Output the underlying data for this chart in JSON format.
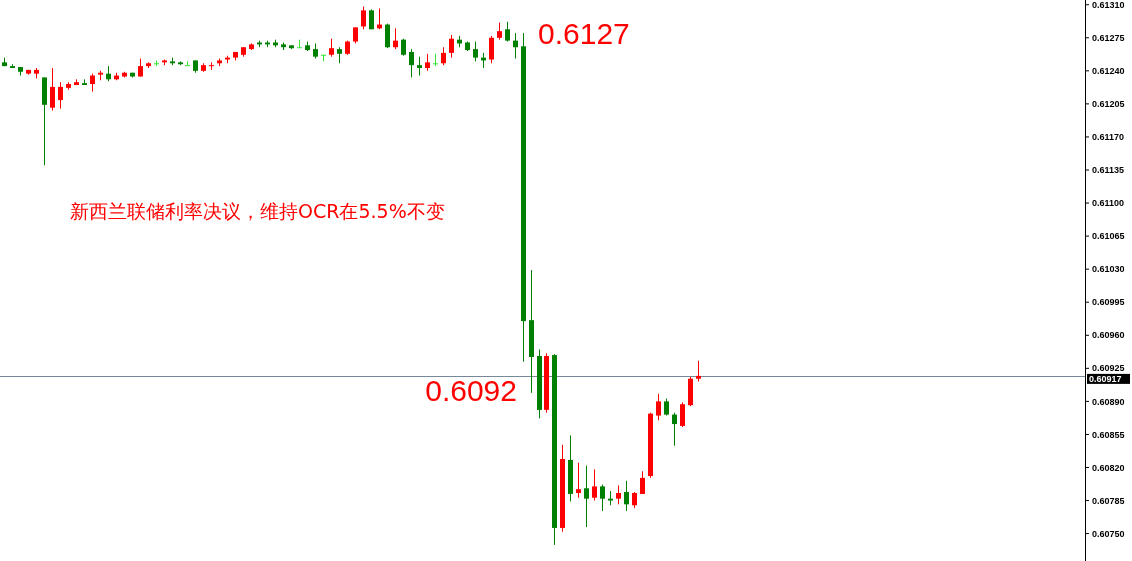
{
  "chart_data": {
    "type": "candlestick",
    "categories": [
      null,
      null,
      null,
      null,
      null,
      null,
      null,
      null,
      null,
      null,
      null,
      null,
      null,
      null,
      null,
      null,
      null,
      null,
      null,
      null,
      null,
      null,
      null,
      null,
      null,
      null,
      null,
      null,
      null,
      null,
      null,
      null,
      null,
      null,
      null,
      null,
      null,
      null,
      null,
      null,
      null,
      null,
      null,
      null,
      null,
      null,
      null,
      null,
      null,
      null,
      null,
      null,
      null,
      null,
      null,
      null,
      null,
      null,
      null,
      null,
      null,
      null,
      null,
      null,
      null,
      null,
      null,
      null,
      null,
      null,
      null,
      null,
      null,
      null,
      null,
      null,
      null,
      null,
      null,
      null,
      null,
      null,
      null,
      null,
      null,
      null,
      null,
      null,
      null,
      null,
      null,
      null,
      null,
      null,
      null,
      null,
      null,
      null,
      null,
      null,
      null,
      null,
      null,
      null,
      null,
      null,
      null,
      null,
      null,
      null,
      null,
      null,
      null,
      null,
      null,
      null,
      null,
      null,
      null,
      null,
      null,
      null,
      null,
      null,
      null,
      null,
      null,
      null,
      null,
      null,
      null,
      null,
      null,
      null,
      null,
      null
    ],
    "ohlc": [
      [
        0.61249,
        0.61254,
        0.61245,
        0.61245
      ],
      [
        0.61245,
        0.61247,
        0.61243,
        0.61243
      ],
      [
        0.61244,
        0.61244,
        0.61235,
        0.61239
      ],
      [
        0.61237,
        0.61241,
        0.61236,
        0.61241
      ],
      [
        0.61237,
        0.61243,
        0.61232,
        0.61241
      ],
      [
        0.61233,
        0.61233,
        0.6114,
        0.61204
      ],
      [
        0.61201,
        0.61243,
        0.61198,
        0.61223
      ],
      [
        0.61209,
        0.61228,
        0.612,
        0.61223
      ],
      [
        0.61222,
        0.61228,
        0.6122,
        0.61226
      ],
      [
        0.61225,
        0.61231,
        0.61225,
        0.61228
      ],
      [
        0.61227,
        0.61231,
        0.61225,
        0.61225
      ],
      [
        0.61226,
        0.61237,
        0.61218,
        0.61235
      ],
      [
        0.61236,
        0.6124,
        0.6123,
        0.61238
      ],
      [
        0.61237,
        0.61245,
        0.61229,
        0.61231
      ],
      [
        0.61231,
        0.61238,
        0.6123,
        0.61235
      ],
      [
        0.61234,
        0.61239,
        0.61233,
        0.61238
      ],
      [
        0.61238,
        0.61238,
        0.61233,
        0.61234
      ],
      [
        0.61234,
        0.61253,
        0.61234,
        0.61245
      ],
      [
        0.61245,
        0.61249,
        0.61243,
        0.61248
      ],
      [
        0.61248,
        0.61251,
        0.61245,
        0.61248
      ],
      [
        0.61249,
        0.61252,
        0.61246,
        0.61251
      ],
      [
        0.6125,
        0.61254,
        0.61246,
        0.61248
      ],
      [
        0.61249,
        0.6125,
        0.61246,
        0.61247
      ],
      [
        0.61246,
        0.6125,
        0.61246,
        0.61246
      ],
      [
        0.61251,
        0.61251,
        0.61238,
        0.6124
      ],
      [
        0.6124,
        0.61248,
        0.61239,
        0.61246
      ],
      [
        0.61245,
        0.61249,
        0.61241,
        0.61246
      ],
      [
        0.61248,
        0.61253,
        0.61245,
        0.61251
      ],
      [
        0.61252,
        0.61256,
        0.61248,
        0.61254
      ],
      [
        0.61254,
        0.6126,
        0.61251,
        0.6126
      ],
      [
        0.61257,
        0.61265,
        0.61255,
        0.61265
      ],
      [
        0.61263,
        0.61269,
        0.61262,
        0.61268
      ],
      [
        0.6127,
        0.61272,
        0.61265,
        0.61268
      ],
      [
        0.6127,
        0.61272,
        0.61265,
        0.61268
      ],
      [
        0.6127,
        0.61273,
        0.61265,
        0.61267
      ],
      [
        0.61268,
        0.6127,
        0.61262,
        0.61265
      ],
      [
        0.61267,
        0.61267,
        0.61263,
        0.61264
      ],
      [
        0.61265,
        0.61273,
        0.61265,
        0.61265
      ],
      [
        0.61267,
        0.61271,
        0.61261,
        0.61262
      ],
      [
        0.61263,
        0.61269,
        0.61253,
        0.61255
      ],
      [
        0.61257,
        0.61257,
        0.6125,
        0.61257
      ],
      [
        0.61257,
        0.61274,
        0.61255,
        0.61264
      ],
      [
        0.61263,
        0.61265,
        0.61248,
        0.61258
      ],
      [
        0.61258,
        0.61272,
        0.61257,
        0.61271
      ],
      [
        0.61271,
        0.61286,
        0.61269,
        0.61286
      ],
      [
        0.61287,
        0.61308,
        0.61284,
        0.61304
      ],
      [
        0.61304,
        0.61305,
        0.61284,
        0.61284
      ],
      [
        0.61285,
        0.61306,
        0.61284,
        0.61289
      ],
      [
        0.61289,
        0.6129,
        0.61264,
        0.61265
      ],
      [
        0.61265,
        0.61285,
        0.61263,
        0.61272
      ],
      [
        0.61273,
        0.61274,
        0.61256,
        0.61257
      ],
      [
        0.6126,
        0.61263,
        0.61233,
        0.61246
      ],
      [
        0.61246,
        0.61255,
        0.61235,
        0.61243
      ],
      [
        0.61243,
        0.61258,
        0.6124,
        0.61249
      ],
      [
        0.61248,
        0.61258,
        0.61245,
        0.61248
      ],
      [
        0.61248,
        0.61265,
        0.61246,
        0.61259
      ],
      [
        0.61259,
        0.61278,
        0.61254,
        0.61274
      ],
      [
        0.61273,
        0.61277,
        0.61265,
        0.61269
      ],
      [
        0.6127,
        0.61271,
        0.61261,
        0.61262
      ],
      [
        0.61263,
        0.61271,
        0.6125,
        0.61254
      ],
      [
        0.61254,
        0.61259,
        0.61243,
        0.61251
      ],
      [
        0.61252,
        0.61277,
        0.61248,
        0.61275
      ],
      [
        0.61275,
        0.61291,
        0.61273,
        0.61282
      ],
      [
        0.61284,
        0.61292,
        0.61271,
        0.61272
      ],
      [
        0.61272,
        0.6128,
        0.61253,
        0.61265
      ],
      [
        0.61266,
        0.6128,
        0.60932,
        0.60975
      ],
      [
        0.60976,
        0.61029,
        0.60899,
        0.60937
      ],
      [
        0.60938,
        0.60945,
        0.60872,
        0.60881
      ],
      [
        0.60881,
        0.60941,
        0.60878,
        0.60938
      ],
      [
        0.60939,
        0.6094,
        0.60738,
        0.60756
      ],
      [
        0.60756,
        0.60844,
        0.60752,
        0.60829
      ],
      [
        0.60828,
        0.60854,
        0.60784,
        0.60792
      ],
      [
        0.60793,
        0.60825,
        0.60788,
        0.60797
      ],
      [
        0.60798,
        0.60822,
        0.60757,
        0.60787
      ],
      [
        0.60788,
        0.60818,
        0.60785,
        0.608
      ],
      [
        0.608,
        0.60802,
        0.60774,
        0.60787
      ],
      [
        0.60787,
        0.60795,
        0.6078,
        0.60785
      ],
      [
        0.60787,
        0.60801,
        0.60781,
        0.60793
      ],
      [
        0.60794,
        0.60806,
        0.60774,
        0.60781
      ],
      [
        0.6078,
        0.60794,
        0.60777,
        0.60793
      ],
      [
        0.60792,
        0.60816,
        0.60792,
        0.60809
      ],
      [
        0.60811,
        0.60878,
        0.60809,
        0.60877
      ],
      [
        0.60875,
        0.60898,
        0.6087,
        0.6089
      ],
      [
        0.6089,
        0.60893,
        0.60875,
        0.60876
      ],
      [
        0.60876,
        0.60878,
        0.60843,
        0.60866
      ],
      [
        0.60864,
        0.60889,
        0.60863,
        0.60887
      ],
      [
        0.60886,
        0.60916,
        0.60885,
        0.60914
      ],
      [
        0.60914,
        0.60933,
        0.60911,
        0.60917
      ],
      null,
      null,
      null,
      null,
      null,
      null,
      null,
      null,
      null,
      null,
      null,
      null,
      null,
      null,
      null,
      null,
      null,
      null,
      null,
      null,
      null,
      null,
      null,
      null,
      null,
      null,
      null,
      null,
      null,
      null,
      null,
      null,
      null,
      null,
      null,
      null,
      null,
      null,
      null,
      null,
      null,
      null,
      null,
      null,
      null,
      null,
      null,
      null
    ],
    "colors": [
      "#008000",
      "#008000",
      "#008000",
      "#ff0000",
      "#ff0000",
      "#008000",
      "#ff0000",
      "#ff0000",
      "#ff0000",
      "#ff0000",
      "#008000",
      "#ff0000",
      "#ff0000",
      "#008000",
      "#ff0000",
      "#ff0000",
      "#008000",
      "#ff0000",
      "#ff0000",
      "#32e632",
      "#ff0000",
      "#008000",
      "#008000",
      "#32e632",
      "#008000",
      "#ff0000",
      "#ff0000",
      "#ff0000",
      "#ff0000",
      "#ff0000",
      "#ff0000",
      "#ff0000",
      "#008000",
      "#008000",
      "#008000",
      "#008000",
      "#008000",
      "#32e632",
      "#008000",
      "#008000",
      "#32e632",
      "#ff0000",
      "#008000",
      "#ff0000",
      "#ff0000",
      "#ff0000",
      "#008000",
      "#ff0000",
      "#008000",
      "#ff0000",
      "#008000",
      "#008000",
      "#008000",
      "#ff0000",
      "#32e632",
      "#ff0000",
      "#ff0000",
      "#008000",
      "#008000",
      "#008000",
      "#008000",
      "#ff0000",
      "#ff0000",
      "#008000",
      "#008000",
      "#008000",
      "#008000",
      "#008000",
      "#ff0000",
      "#008000",
      "#ff0000",
      "#008000",
      "#ff0000",
      "#008000",
      "#ff0000",
      "#008000",
      "#008000",
      "#ff0000",
      "#008000",
      "#ff0000",
      "#ff0000",
      "#ff0000",
      "#ff0000",
      "#008000",
      "#008000",
      "#ff0000",
      "#ff0000",
      "#ff0000",
      null,
      null,
      null,
      null,
      null,
      null,
      null,
      null,
      null,
      null,
      null,
      null,
      null,
      null,
      null,
      null,
      null,
      null,
      null,
      null,
      null,
      null,
      null,
      null,
      null,
      null,
      null,
      null,
      null,
      null,
      null,
      null,
      null,
      null,
      null,
      null,
      null,
      null,
      null,
      null,
      null,
      null,
      null,
      null,
      null,
      null,
      null,
      null
    ],
    "ylim": [
      0.60721,
      0.61315
    ],
    "yticks": [
      {
        "value": 0.6131,
        "label": "0.61310"
      },
      {
        "value": 0.61275,
        "label": "0.61275"
      },
      {
        "value": 0.6124,
        "label": "0.61240"
      },
      {
        "value": 0.61205,
        "label": "0.61205"
      },
      {
        "value": 0.6117,
        "label": "0.61170"
      },
      {
        "value": 0.61135,
        "label": "0.61135"
      },
      {
        "value": 0.611,
        "label": "0.61100"
      },
      {
        "value": 0.61065,
        "label": "0.61065"
      },
      {
        "value": 0.6103,
        "label": "0.61030"
      },
      {
        "value": 0.60995,
        "label": "0.60995"
      },
      {
        "value": 0.6096,
        "label": "0.60960"
      },
      {
        "value": 0.60925,
        "label": "0.60925"
      },
      {
        "value": 0.6089,
        "label": "0.60890"
      },
      {
        "value": 0.60855,
        "label": "0.60855"
      },
      {
        "value": 0.6082,
        "label": "0.60820"
      },
      {
        "value": 0.60785,
        "label": "0.60785"
      },
      {
        "value": 0.6075,
        "label": "0.60750"
      }
    ],
    "ref_lines": [
      {
        "axis": "y",
        "value": 0.60917,
        "label": "0.60917",
        "color": "#778899"
      }
    ],
    "annotations": [
      "0.6127",
      "0.6092",
      "新西兰联储利率决议，维持OCR在5.5%不变"
    ],
    "tick_labels": "y"
  }
}
